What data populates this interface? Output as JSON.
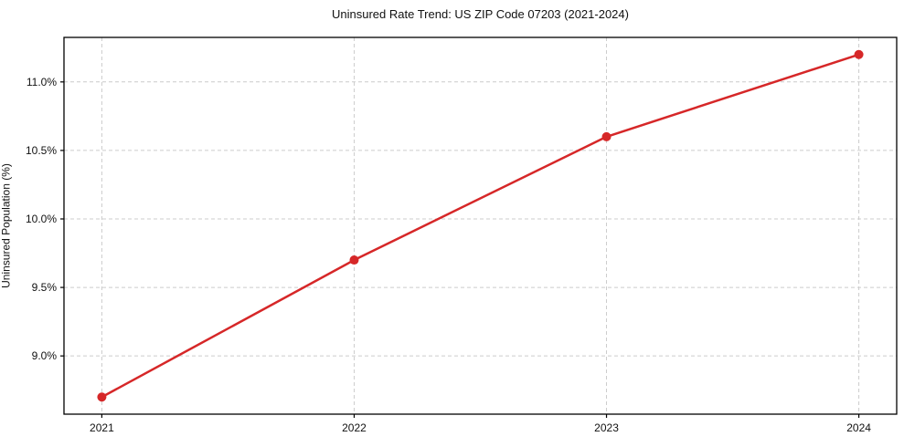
{
  "chart_data": {
    "type": "line",
    "title": "Uninsured Rate Trend: US ZIP Code 07203 (2021-2024)",
    "xlabel": "",
    "ylabel": "Uninsured Population (%)",
    "x": [
      2021,
      2022,
      2023,
      2024
    ],
    "x_tick_labels": [
      "2021",
      "2022",
      "2023",
      "2024"
    ],
    "values": [
      8.7,
      9.7,
      10.6,
      11.2
    ],
    "y_ticks": [
      9.0,
      9.5,
      10.0,
      10.5,
      11.0
    ],
    "y_tick_labels": [
      "9.0%",
      "9.5%",
      "10.0%",
      "10.5%",
      "11.0%"
    ],
    "xlim": [
      2020.85,
      2024.15
    ],
    "ylim": [
      8.575,
      11.325
    ],
    "grid": true,
    "grid_style": "dashed",
    "legend": false,
    "line_color": "#d62728",
    "marker": "circle",
    "marker_radius": 5,
    "background_color": "#ffffff",
    "grid_color": "#cccccc",
    "frame_color": "#000000"
  }
}
